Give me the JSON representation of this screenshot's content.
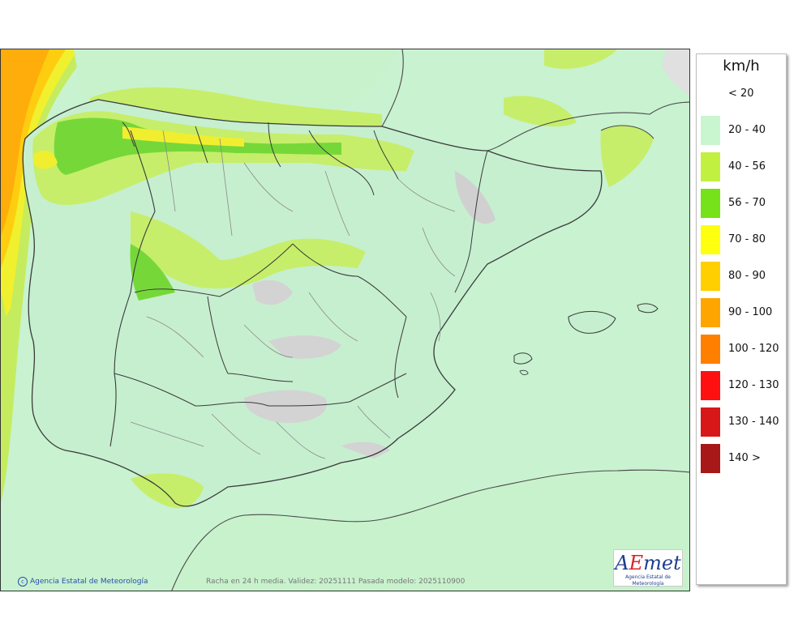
{
  "map": {
    "caption": "Racha en 24 h media. Validez: 20251111 Pasada modelo: 2025110900",
    "credit": "Agencia Estatal de Meteorología",
    "logo_text": "AEmet",
    "logo_subtitle": "Agencia Estatal de Meteorología",
    "colors": {
      "sea": "#c9f2d1",
      "land_base": "#c6efcf",
      "band_40_56": "#c6ee6a",
      "band_56_70": "#77d83a",
      "band_70_80": "#f3f335",
      "band_80_90": "#ffd012",
      "band_90_100": "#ffad0a",
      "relief": "#cfcfcf",
      "border": "#3a3a3a",
      "province_line": "#8c8c8c"
    }
  },
  "legend": {
    "unit": "km/h",
    "items": [
      {
        "label": "< 20",
        "color": "#ffffff"
      },
      {
        "label": "20 - 40",
        "color": "#c9f5cf"
      },
      {
        "label": "40 - 56",
        "color": "#c2f040"
      },
      {
        "label": "56 - 70",
        "color": "#76e21a"
      },
      {
        "label": "70 - 80",
        "color": "#ffff10"
      },
      {
        "label": "80 - 90",
        "color": "#ffcf00"
      },
      {
        "label": "90 - 100",
        "color": "#ffa500"
      },
      {
        "label": "100 - 120",
        "color": "#ff7f00"
      },
      {
        "label": "120 - 130",
        "color": "#ff1010"
      },
      {
        "label": "130 - 140",
        "color": "#d81818"
      },
      {
        "label": "140 >",
        "color": "#a81818"
      }
    ]
  }
}
